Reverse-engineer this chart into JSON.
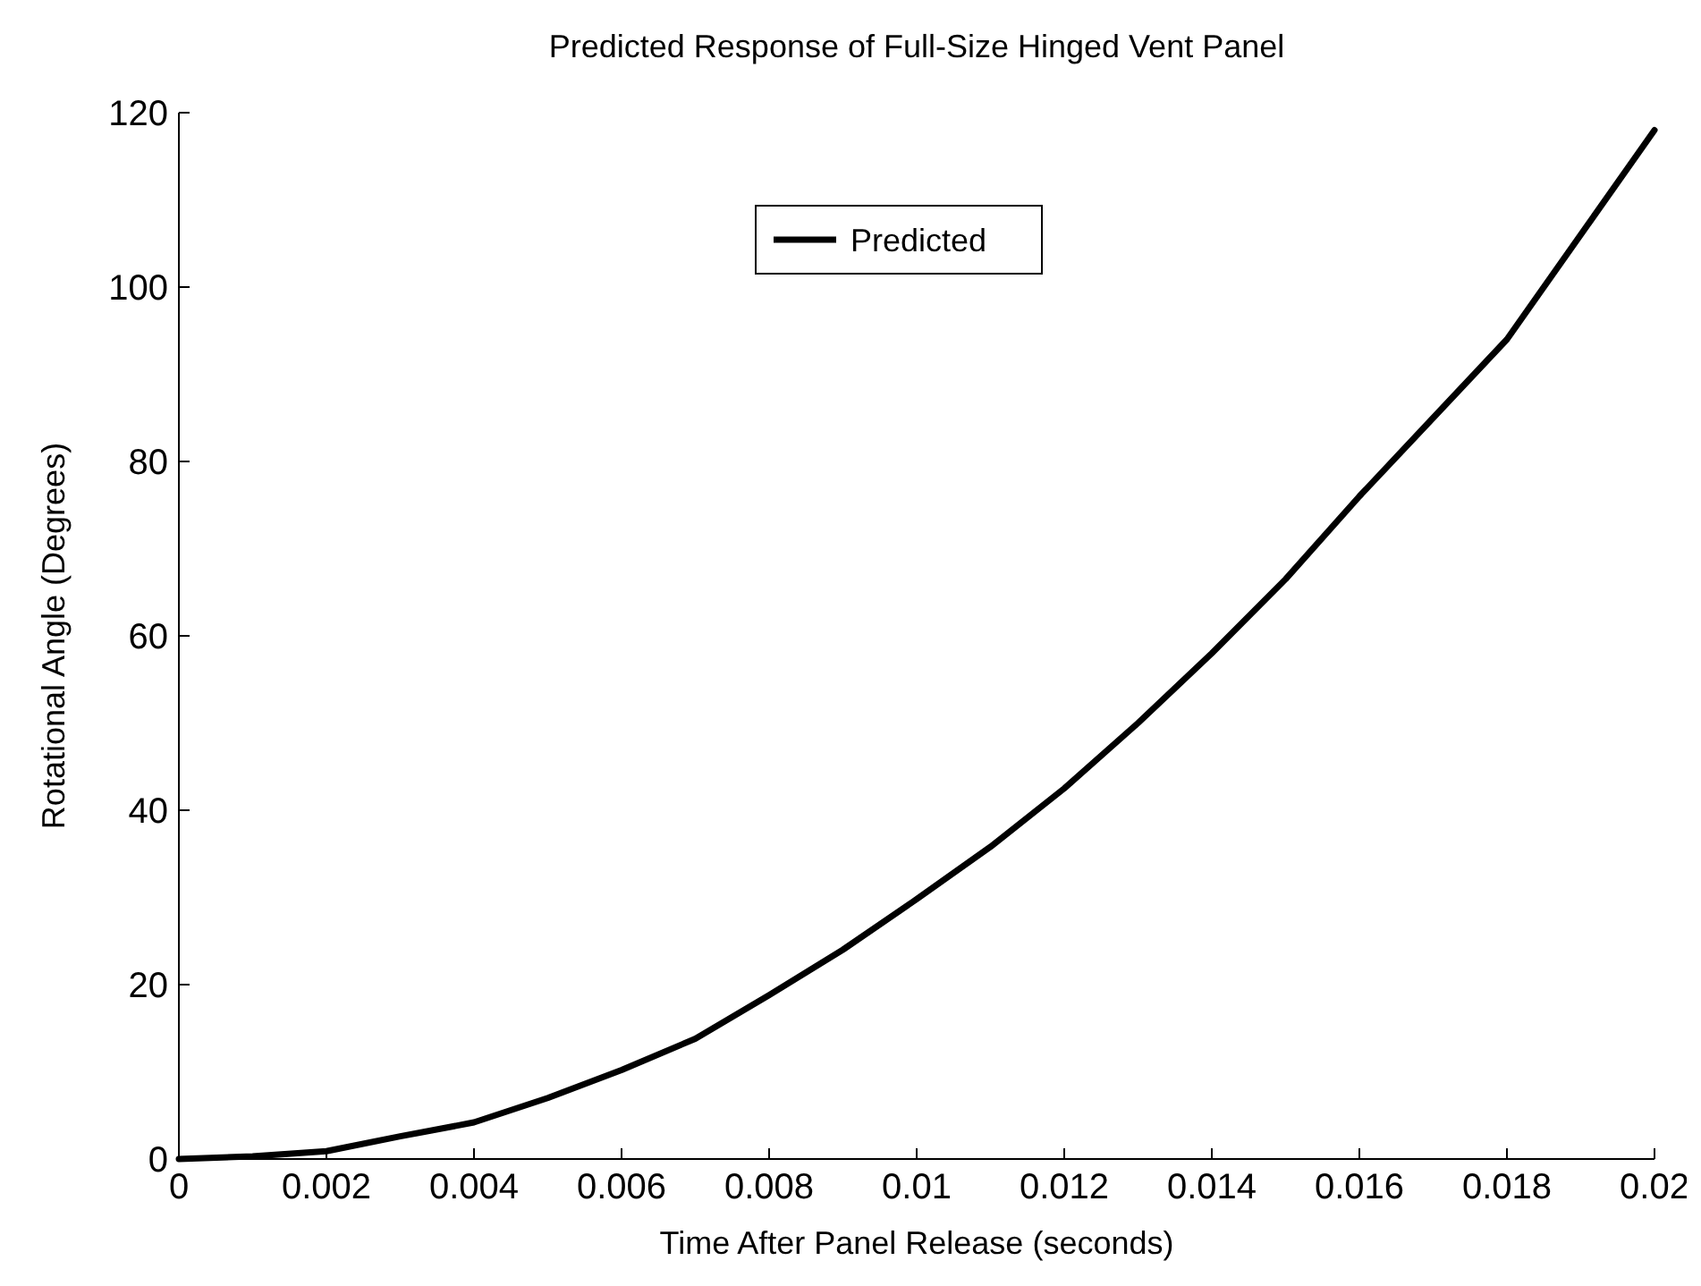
{
  "chart_data": {
    "type": "line",
    "title": "Predicted Response of Full-Size Hinged Vent Panel",
    "xlabel": "Time After Panel Release (seconds)",
    "ylabel": "Rotational Angle (Degrees)",
    "x": [
      0,
      0.001,
      0.002,
      0.003,
      0.004,
      0.005,
      0.006,
      0.007,
      0.008,
      0.009,
      0.01,
      0.011,
      0.012,
      0.013,
      0.014,
      0.015,
      0.016,
      0.017,
      0.018,
      0.019,
      0.02
    ],
    "series": [
      {
        "name": "Predicted",
        "color": "#000000",
        "values": [
          0,
          0.3,
          0.9,
          2.6,
          4.2,
          7,
          10.2,
          13.8,
          18.8,
          24,
          29.8,
          35.8,
          42.5,
          50,
          58,
          66.5,
          76,
          85,
          94,
          106,
          118
        ]
      }
    ],
    "xlim": [
      0,
      0.02
    ],
    "xticks": [
      0,
      0.002,
      0.004,
      0.006,
      0.008,
      0.01,
      0.012,
      0.014,
      0.016,
      0.018,
      0.02
    ],
    "ylim": [
      0,
      120
    ],
    "yticks": [
      0,
      20,
      40,
      60,
      80,
      100,
      120
    ],
    "legend": "top",
    "grid": false
  }
}
